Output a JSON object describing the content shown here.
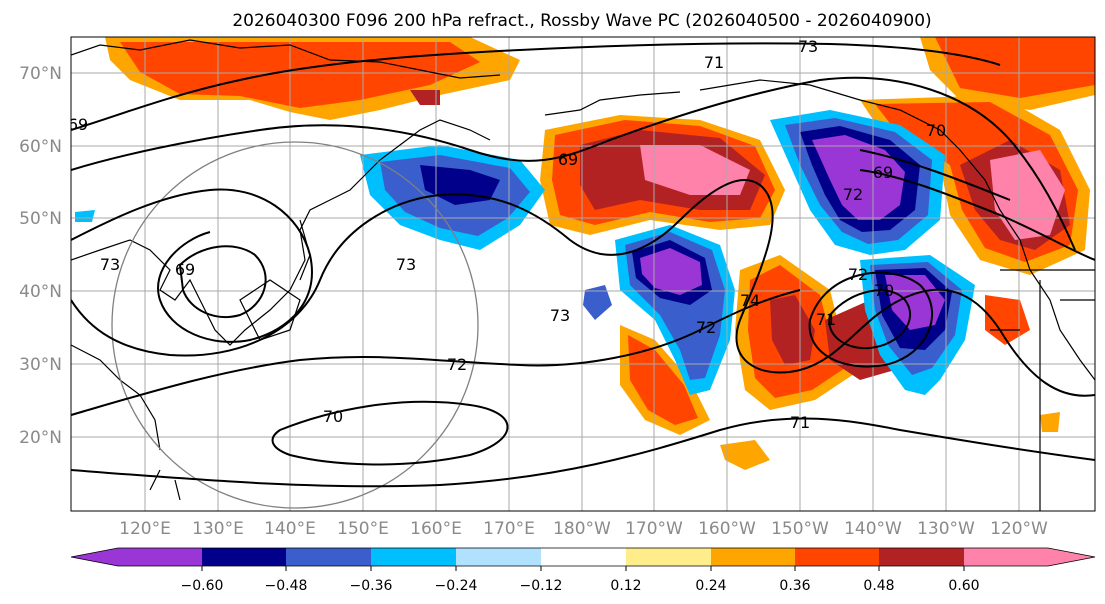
{
  "title": "2026040300 F096 200 hPa refract., Rossby Wave PC (2026040500 - 2026040900)",
  "lat_labels": [
    "70°N",
    "60°N",
    "50°N",
    "40°N",
    "30°N",
    "20°N"
  ],
  "lat_values": [
    70,
    60,
    50,
    40,
    30,
    20
  ],
  "lon_labels": [
    "120°E",
    "130°E",
    "140°E",
    "150°E",
    "160°E",
    "170°E",
    "180°W",
    "170°W",
    "160°W",
    "150°W",
    "140°W",
    "130°W",
    "120°W"
  ],
  "lon_values": [
    120,
    130,
    140,
    150,
    160,
    170,
    180,
    190,
    200,
    210,
    220,
    230,
    240
  ],
  "colorbar": {
    "colors": [
      "#9a35d6",
      "#00008b",
      "#3a5fcd",
      "#00bfff",
      "#b0e2ff",
      "#ffffff",
      "#ffec8b",
      "#ffa500",
      "#ff4500",
      "#b22222",
      "#ff82ab"
    ],
    "ticks": [
      "−0.60",
      "−0.48",
      "−0.36",
      "−0.24",
      "−0.12",
      "0.12",
      "0.24",
      "0.36",
      "0.48",
      "0.60"
    ]
  },
  "contour_labels": [
    "73",
    "71",
    "70",
    "69",
    "73",
    "69",
    "73",
    "72",
    "70",
    "69",
    "72",
    "73",
    "74",
    "72",
    "70",
    "71",
    "72",
    "71",
    "69"
  ]
}
